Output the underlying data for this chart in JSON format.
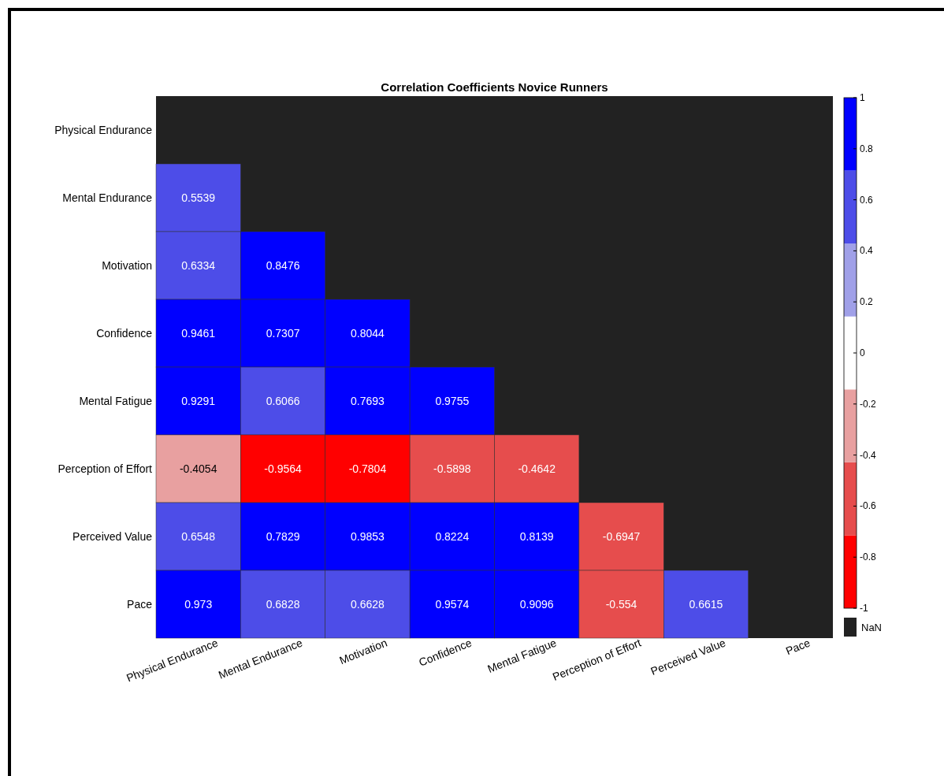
{
  "chart_data": {
    "type": "heatmap",
    "title": "Correlation Coefficients Novice Runners",
    "categories": [
      "Physical Endurance",
      "Mental Endurance",
      "Motivation",
      "Confidence",
      "Mental Fatigue",
      "Perception of Effort",
      "Perceived Value",
      "Pace"
    ],
    "y_categories": [
      "Physical Endurance",
      "Mental Endurance",
      "Motivation",
      "Confidence",
      "Mental Fatigue",
      "Perception of Effort",
      "Perceived Value",
      "Pace"
    ],
    "cells": [
      [
        null,
        null,
        null,
        null,
        null,
        null,
        null,
        null
      ],
      [
        0.5539,
        null,
        null,
        null,
        null,
        null,
        null,
        null
      ],
      [
        0.6334,
        0.8476,
        null,
        null,
        null,
        null,
        null,
        null
      ],
      [
        0.9461,
        0.7307,
        0.8044,
        null,
        null,
        null,
        null,
        null
      ],
      [
        0.9291,
        0.6066,
        0.7693,
        0.9755,
        null,
        null,
        null,
        null
      ],
      [
        -0.4054,
        -0.9564,
        -0.7804,
        -0.5898,
        -0.4642,
        null,
        null,
        null
      ],
      [
        0.6548,
        0.7829,
        0.9853,
        0.8224,
        0.8139,
        -0.6947,
        null,
        null
      ],
      [
        0.973,
        0.6828,
        0.6628,
        0.9574,
        0.9096,
        -0.554,
        0.6615,
        null
      ]
    ],
    "data_labels": true,
    "clim": [
      -1,
      1
    ],
    "cticks": [
      -1,
      -0.8,
      -0.6,
      -0.4,
      -0.2,
      0,
      0.2,
      0.4,
      0.6,
      0.8,
      1
    ],
    "annotations": [
      "NaN"
    ]
  }
}
